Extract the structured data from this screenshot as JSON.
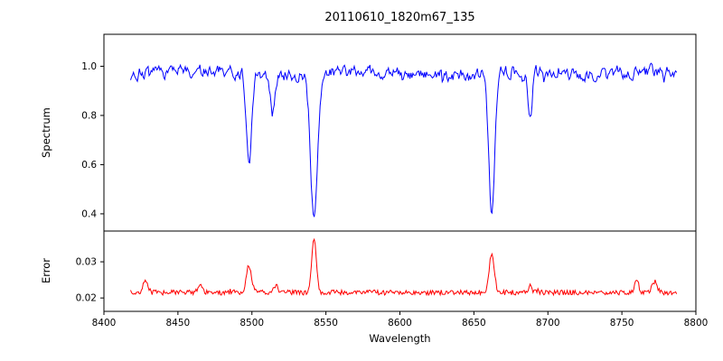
{
  "chart_data": [
    {
      "type": "line",
      "title": "20110610_1820m67_135",
      "ylabel": "Spectrum",
      "series_name": "spectrum",
      "color": "#0000ff",
      "xlim": [
        8400,
        8800
      ],
      "ylim": [
        0.33,
        1.13
      ],
      "x_range": [
        8418,
        8787
      ],
      "continuum": 0.972,
      "noise_amplitude": 0.028,
      "absorption_lines": [
        {
          "center": 8498,
          "depth": 0.38,
          "width": 1.8
        },
        {
          "center": 8514,
          "depth": 0.16,
          "width": 1.4
        },
        {
          "center": 8542,
          "depth": 0.6,
          "width": 2.4
        },
        {
          "center": 8662,
          "depth": 0.57,
          "width": 2.0
        },
        {
          "center": 8688,
          "depth": 0.19,
          "width": 1.3
        }
      ],
      "ytick_values": [
        0.4,
        0.6,
        0.8,
        1.0
      ],
      "ytick_labels": [
        "0.4",
        "0.6",
        "0.8",
        "1.0"
      ],
      "grid": false,
      "legend": "none"
    },
    {
      "type": "line",
      "ylabel": "Error",
      "xlabel": "Wavelength",
      "series_name": "error",
      "color": "#ff0000",
      "xlim": [
        8400,
        8800
      ],
      "ylim": [
        0.0163,
        0.0385
      ],
      "baseline": 0.0215,
      "noise_amplitude": 0.0007,
      "peaks": [
        {
          "center": 8428,
          "height": 0.003,
          "width": 1.6
        },
        {
          "center": 8465,
          "height": 0.0025,
          "width": 1.6
        },
        {
          "center": 8498,
          "height": 0.0075,
          "width": 1.8
        },
        {
          "center": 8516,
          "height": 0.002,
          "width": 1.5
        },
        {
          "center": 8542,
          "height": 0.0145,
          "width": 1.6
        },
        {
          "center": 8662,
          "height": 0.011,
          "width": 1.6
        },
        {
          "center": 8688,
          "height": 0.002,
          "width": 1.3
        },
        {
          "center": 8760,
          "height": 0.004,
          "width": 1.2
        },
        {
          "center": 8772,
          "height": 0.003,
          "width": 1.8
        }
      ],
      "xtick_values": [
        8400,
        8450,
        8500,
        8550,
        8600,
        8650,
        8700,
        8750,
        8800
      ],
      "xtick_labels": [
        "8400",
        "8450",
        "8500",
        "8550",
        "8600",
        "8650",
        "8700",
        "8750",
        "8800"
      ],
      "ytick_values": [
        0.02,
        0.03
      ],
      "ytick_labels": [
        "0.02",
        "0.03"
      ],
      "grid": false,
      "legend": "none"
    }
  ]
}
